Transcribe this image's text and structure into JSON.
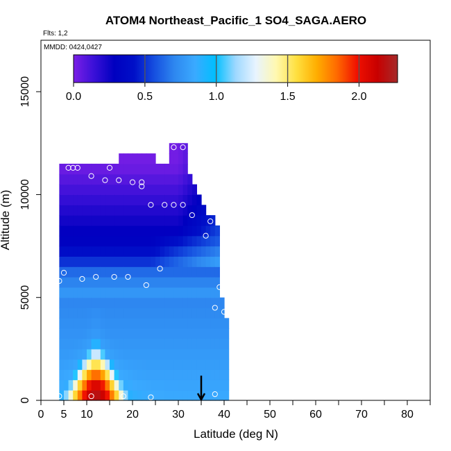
{
  "chart_data": {
    "type": "heatmap",
    "title": "ATOM4 Northeast_Pacific_1 SO4_SAGA.AERO",
    "subtitle_flights": "Flts: 1,2",
    "subtitle_dates": "MMDD: 0424,0427",
    "xlabel": "Latitude (deg N)",
    "ylabel": "Altitude (m)",
    "xlim": [
      0,
      85
    ],
    "ylim": [
      0,
      17500
    ],
    "x_ticks": [
      0,
      5,
      10,
      20,
      30,
      40,
      50,
      60,
      70,
      80
    ],
    "x_tick_labels": [
      "0",
      "5",
      "10",
      "20",
      "30",
      "40",
      "50",
      "60",
      "70",
      "80"
    ],
    "y_ticks": [
      0,
      5000,
      10000,
      15000
    ],
    "y_tick_labels": [
      "0",
      "5000",
      "10000",
      "15000"
    ],
    "colorbar": {
      "range": [
        0,
        2.27
      ],
      "ticks": [
        0.0,
        0.5,
        1.0,
        1.5,
        2.0
      ],
      "tick_labels": [
        "0.0",
        "0.5",
        "1.0",
        "1.5",
        "2.0"
      ],
      "colors": [
        "#7b1fe6",
        "#3a10d8",
        "#0000c0",
        "#0010c8",
        "#1650e0",
        "#2e88f0",
        "#3aaaff",
        "#00bfff",
        "#9ed8ff",
        "#e8f4ff",
        "#fff8b0",
        "#ffe040",
        "#ffae00",
        "#ff6a00",
        "#f01000",
        "#c80000",
        "#a52a2a"
      ]
    },
    "latitude_columns": [
      4,
      5,
      6,
      7,
      8,
      9,
      10,
      11,
      12,
      13,
      14,
      15,
      16,
      17,
      18,
      19,
      20,
      21,
      22,
      23,
      24,
      25,
      26,
      27,
      28,
      29,
      30,
      31,
      32,
      33,
      34,
      35,
      36,
      37,
      38,
      39,
      40
    ],
    "altitude_rows": [
      0,
      500,
      1000,
      1500,
      2000,
      2500,
      3000,
      3500,
      4000,
      4500,
      5000,
      5500,
      6000,
      6500,
      7000,
      7500,
      8000,
      8500,
      9000,
      9500,
      10000,
      10500,
      11000,
      11500,
      12000,
      12500
    ],
    "latitude_step": 1,
    "altitude_step": 500,
    "profile_top_altitude": [
      11500,
      11500,
      11500,
      11500,
      11500,
      11500,
      11500,
      11500,
      11500,
      11500,
      11500,
      11500,
      11500,
      12000,
      12000,
      12000,
      12000,
      12000,
      12000,
      12000,
      12000,
      11500,
      11500,
      11500,
      12500,
      12500,
      12500,
      12500,
      11000,
      10500,
      10000,
      9500,
      9000,
      9000,
      8500,
      5000,
      4000
    ],
    "profile_bottom_altitude": [
      0,
      0,
      0,
      0,
      0,
      0,
      0,
      0,
      0,
      0,
      0,
      0,
      0,
      0,
      0,
      0,
      0,
      0,
      0,
      0,
      0,
      0,
      0,
      0,
      0,
      0,
      0,
      0,
      0,
      0,
      0,
      0,
      0,
      0,
      0,
      0,
      0
    ],
    "concentration_model": {
      "plume_peak": 2.1,
      "plume_center_lat": 12,
      "plume_lat_halfwidth_surface": 8,
      "plume_top_altitude": 3500
    },
    "observations": [
      {
        "lat": 4,
        "alt": 200
      },
      {
        "lat": 11,
        "alt": 200
      },
      {
        "lat": 18,
        "alt": 200
      },
      {
        "lat": 24,
        "alt": 150
      },
      {
        "lat": 38,
        "alt": 300
      },
      {
        "lat": 40,
        "alt": 4300
      },
      {
        "lat": 38,
        "alt": 4500
      },
      {
        "lat": 39,
        "alt": 5500
      },
      {
        "lat": 4,
        "alt": 5800
      },
      {
        "lat": 5,
        "alt": 6200
      },
      {
        "lat": 9,
        "alt": 5900
      },
      {
        "lat": 12,
        "alt": 6000
      },
      {
        "lat": 16,
        "alt": 6000
      },
      {
        "lat": 19,
        "alt": 6000
      },
      {
        "lat": 23,
        "alt": 5600
      },
      {
        "lat": 26,
        "alt": 6400
      },
      {
        "lat": 36,
        "alt": 8000
      },
      {
        "lat": 37,
        "alt": 8700
      },
      {
        "lat": 33,
        "alt": 9000
      },
      {
        "lat": 24,
        "alt": 9500
      },
      {
        "lat": 27,
        "alt": 9500
      },
      {
        "lat": 29,
        "alt": 9500
      },
      {
        "lat": 31,
        "alt": 9500
      },
      {
        "lat": 22,
        "alt": 10400
      },
      {
        "lat": 22,
        "alt": 10600
      },
      {
        "lat": 20,
        "alt": 10600
      },
      {
        "lat": 17,
        "alt": 10700
      },
      {
        "lat": 14,
        "alt": 10700
      },
      {
        "lat": 11,
        "alt": 10900
      },
      {
        "lat": 6,
        "alt": 11300
      },
      {
        "lat": 7,
        "alt": 11300
      },
      {
        "lat": 8,
        "alt": 11300
      },
      {
        "lat": 15,
        "alt": 11300
      },
      {
        "lat": 29,
        "alt": 12300
      },
      {
        "lat": 31,
        "alt": 12300
      }
    ],
    "marker_latitude": 35
  }
}
